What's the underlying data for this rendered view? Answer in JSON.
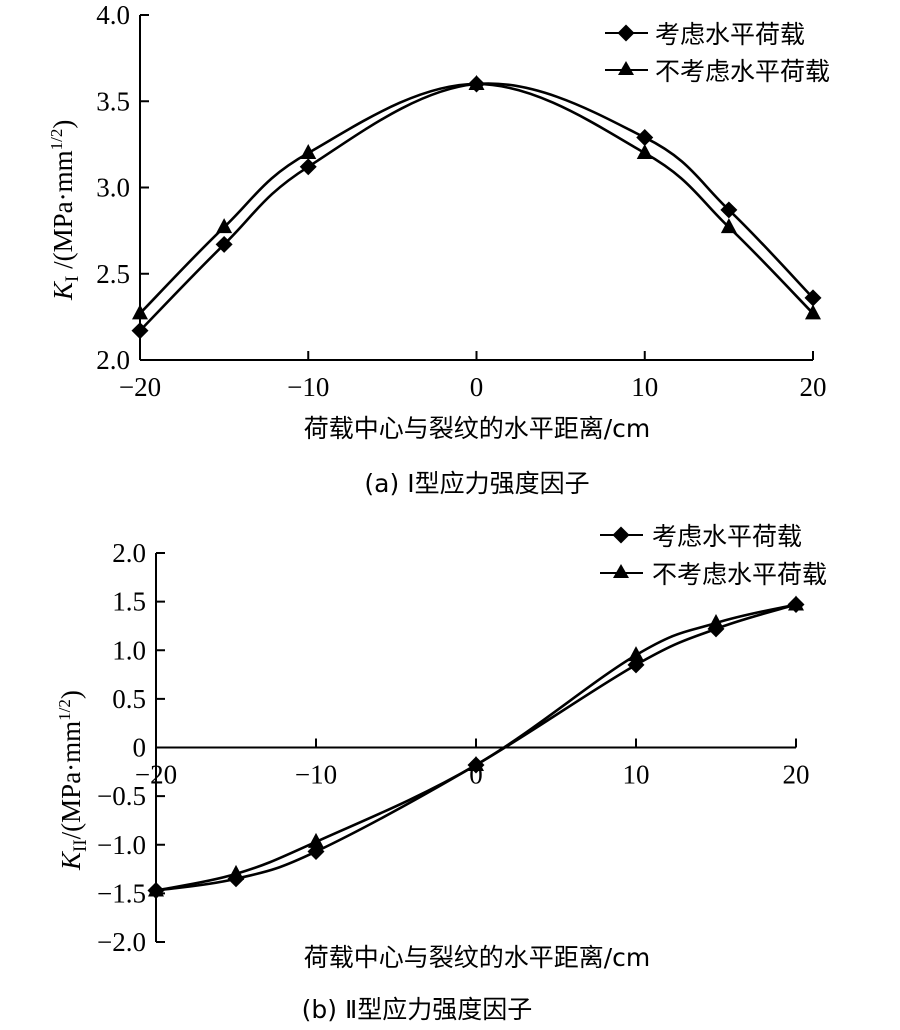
{
  "chart_data": [
    {
      "type": "line",
      "panel": "a",
      "title": "(a) Ⅰ型应力强度因子",
      "xlabel": "荷载中心与裂纹的水平距离/cm",
      "ylabel": "K_I /(MPa·mm^1/2)",
      "ylabel_parts": {
        "symbol": "K",
        "subscript": "I",
        "unit": " /(MPa·mm",
        "sup": "1/2",
        "close": ")"
      },
      "x": [
        -20,
        -15,
        -10,
        0,
        10,
        15,
        20
      ],
      "xlim": [
        -20,
        20
      ],
      "ylim": [
        2.0,
        4.0
      ],
      "xticks": [
        "−20",
        "−10",
        "0",
        "10",
        "20"
      ],
      "yticks": [
        "2.0",
        "2.5",
        "3.0",
        "3.5",
        "4.0"
      ],
      "grid": false,
      "legend_position": "top-right",
      "series": [
        {
          "name": "考虑水平荷载",
          "marker": "diamond",
          "values": [
            2.17,
            2.67,
            3.12,
            3.6,
            3.29,
            2.87,
            2.36
          ]
        },
        {
          "name": "不考虑水平荷载",
          "marker": "triangle",
          "values": [
            2.27,
            2.77,
            3.2,
            3.6,
            3.2,
            2.77,
            2.27
          ]
        }
      ]
    },
    {
      "type": "line",
      "panel": "b",
      "title": "(b) Ⅱ型应力强度因子",
      "xlabel": "荷载中心与裂纹的水平距离/cm",
      "ylabel": "K_II/(MPa·mm^1/2)",
      "ylabel_parts": {
        "symbol": "K",
        "subscript": "II",
        "unit": "/(MPa·mm",
        "sup": "1/2",
        "close": ")"
      },
      "x": [
        -20,
        -15,
        -10,
        0,
        10,
        15,
        20
      ],
      "xlim": [
        -20,
        20
      ],
      "ylim": [
        -2.0,
        2.0
      ],
      "xticks": [
        "−20",
        "−10",
        "0",
        "10",
        "20"
      ],
      "yticks": [
        "−2.0",
        "−1.5",
        "−1.0",
        "−0.5",
        "0",
        "0.5",
        "1.0",
        "1.5",
        "2.0"
      ],
      "grid": false,
      "legend_position": "top-right",
      "series": [
        {
          "name": "考虑水平荷载",
          "marker": "diamond",
          "values": [
            -1.47,
            -1.35,
            -1.07,
            -0.18,
            0.85,
            1.22,
            1.47
          ]
        },
        {
          "name": "不考虑水平荷载",
          "marker": "triangle",
          "values": [
            -1.47,
            -1.3,
            -0.97,
            -0.18,
            0.95,
            1.28,
            1.47
          ]
        }
      ]
    }
  ],
  "panel_a": {
    "title": "(a) Ⅰ型应力强度因子",
    "xlabel": "荷载中心与裂纹的水平距离/cm",
    "y_symbol": "K",
    "y_sub": "I",
    "y_unit": " /(MPa·mm",
    "y_sup": "1/2",
    "y_close": ")",
    "legend": [
      "考虑水平荷载",
      "不考虑水平荷载"
    ]
  },
  "panel_b": {
    "title": "(b) Ⅱ型应力强度因子",
    "xlabel": "荷载中心与裂纹的水平距离/cm",
    "y_symbol": "K",
    "y_sub": "II",
    "y_unit": "/(MPa·mm",
    "y_sup": "1/2",
    "y_close": ")",
    "legend": [
      "考虑水平荷载",
      "不考虑水平荷载"
    ]
  }
}
